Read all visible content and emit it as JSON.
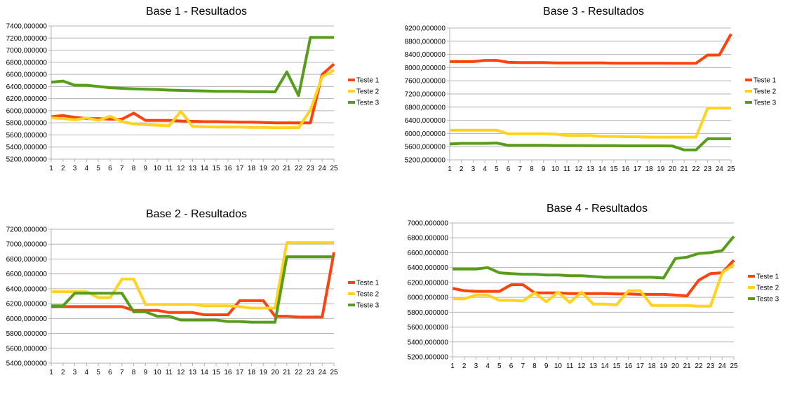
{
  "colors": {
    "Teste 1": "#ff420e",
    "Teste 2": "#ffd320",
    "Teste 3": "#579d1c"
  },
  "chart_data": [
    {
      "type": "line",
      "title": "Base 1 - Resultados",
      "categories": [
        "1",
        "2",
        "3",
        "4",
        "5",
        "6",
        "7",
        "8",
        "9",
        "10",
        "11",
        "12",
        "13",
        "14",
        "15",
        "16",
        "17",
        "18",
        "19",
        "20",
        "21",
        "22",
        "23",
        "24",
        "25"
      ],
      "ylim": [
        5200,
        7400
      ],
      "yticks": [
        5200,
        5400,
        5600,
        5800,
        6000,
        6200,
        6400,
        6600,
        6800,
        7000,
        7200,
        7400
      ],
      "ytick_labels": [
        "5200,000000",
        "5400,000000",
        "5600,000000",
        "5800,000000",
        "6000,000000",
        "6200,000000",
        "6400,000000",
        "6600,000000",
        "6800,000000",
        "7000,000000",
        "7200,000000",
        "7400,000000"
      ],
      "grid": true,
      "legend": "right",
      "series": [
        {
          "name": "Teste 1",
          "values": [
            5900,
            5920,
            5890,
            5870,
            5870,
            5860,
            5860,
            5960,
            5840,
            5840,
            5840,
            5830,
            5825,
            5820,
            5820,
            5815,
            5810,
            5810,
            5805,
            5800,
            5800,
            5800,
            5800,
            6600,
            6770
          ]
        },
        {
          "name": "Teste 2",
          "values": [
            5880,
            5870,
            5850,
            5880,
            5840,
            5910,
            5820,
            5780,
            5770,
            5760,
            5750,
            5990,
            5740,
            5735,
            5730,
            5730,
            5730,
            5725,
            5725,
            5720,
            5720,
            5720,
            6010,
            6560,
            6670
          ]
        },
        {
          "name": "Teste 3",
          "values": [
            6470,
            6490,
            6420,
            6420,
            6400,
            6380,
            6370,
            6360,
            6355,
            6350,
            6340,
            6335,
            6330,
            6325,
            6320,
            6320,
            6318,
            6315,
            6315,
            6310,
            6640,
            6250,
            7210,
            7210,
            7210
          ]
        }
      ]
    },
    {
      "type": "line",
      "title": "Base 3 - Resultados",
      "categories": [
        "1",
        "2",
        "3",
        "4",
        "5",
        "6",
        "7",
        "8",
        "9",
        "10",
        "11",
        "12",
        "13",
        "14",
        "15",
        "16",
        "17",
        "18",
        "19",
        "20",
        "21",
        "22",
        "23",
        "24",
        "25"
      ],
      "ylim": [
        5200,
        9200
      ],
      "yticks": [
        5200,
        5600,
        6000,
        6400,
        6800,
        7200,
        7600,
        8000,
        8400,
        8800,
        9200
      ],
      "ytick_labels": [
        "5200,000000",
        "5600,000000",
        "6000,000000",
        "6400,000000",
        "6800,000000",
        "7200,000000",
        "7600,000000",
        "8000,000000",
        "8400,000000",
        "8800,000000",
        "9200,000000"
      ],
      "grid": true,
      "legend": "right",
      "series": [
        {
          "name": "Teste 1",
          "values": [
            8180,
            8180,
            8180,
            8220,
            8220,
            8160,
            8150,
            8150,
            8150,
            8140,
            8140,
            8140,
            8140,
            8140,
            8135,
            8135,
            8135,
            8135,
            8135,
            8130,
            8130,
            8130,
            8380,
            8380,
            9020
          ]
        },
        {
          "name": "Teste 2",
          "values": [
            6100,
            6100,
            6100,
            6100,
            6100,
            5990,
            5990,
            5990,
            5990,
            5980,
            5940,
            5940,
            5940,
            5910,
            5910,
            5900,
            5900,
            5890,
            5890,
            5890,
            5890,
            5890,
            6770,
            6770,
            6770
          ]
        },
        {
          "name": "Teste 3",
          "values": [
            5680,
            5700,
            5700,
            5700,
            5710,
            5640,
            5640,
            5640,
            5640,
            5635,
            5635,
            5635,
            5630,
            5630,
            5630,
            5625,
            5625,
            5625,
            5625,
            5620,
            5500,
            5500,
            5840,
            5840,
            5840
          ]
        }
      ]
    },
    {
      "type": "line",
      "title": "Base 2 - Resultados",
      "categories": [
        "1",
        "2",
        "3",
        "4",
        "5",
        "6",
        "7",
        "8",
        "9",
        "10",
        "11",
        "12",
        "13",
        "14",
        "15",
        "16",
        "17",
        "18",
        "19",
        "20",
        "21",
        "22",
        "23",
        "24",
        "25"
      ],
      "ylim": [
        5400,
        7200
      ],
      "yticks": [
        5400,
        5600,
        5800,
        6000,
        6200,
        6400,
        6600,
        6800,
        7000,
        7200
      ],
      "ytick_labels": [
        "5400,000000",
        "5600,000000",
        "5800,000000",
        "6000,000000",
        "6200,000000",
        "6400,000000",
        "6600,000000",
        "6800,000000",
        "7000,000000",
        "7200,000000"
      ],
      "grid": true,
      "legend": "right",
      "series": [
        {
          "name": "Teste 1",
          "values": [
            6160,
            6160,
            6160,
            6160,
            6160,
            6160,
            6160,
            6110,
            6110,
            6110,
            6080,
            6080,
            6080,
            6050,
            6050,
            6050,
            6240,
            6240,
            6240,
            6030,
            6030,
            6020,
            6020,
            6020,
            6890
          ]
        },
        {
          "name": "Teste 2",
          "values": [
            6360,
            6360,
            6360,
            6360,
            6280,
            6280,
            6530,
            6530,
            6190,
            6190,
            6190,
            6190,
            6190,
            6170,
            6170,
            6170,
            6160,
            6140,
            6140,
            6140,
            7020,
            7020,
            7020,
            7020,
            7020
          ]
        },
        {
          "name": "Teste 3",
          "values": [
            6170,
            6170,
            6340,
            6340,
            6340,
            6340,
            6340,
            6090,
            6090,
            6030,
            6030,
            5980,
            5980,
            5980,
            5980,
            5960,
            5960,
            5950,
            5950,
            5950,
            6830,
            6830,
            6830,
            6830,
            6830
          ]
        }
      ]
    },
    {
      "type": "line",
      "title": "Base 4 - Resultados",
      "categories": [
        "1",
        "2",
        "3",
        "4",
        "5",
        "6",
        "7",
        "8",
        "9",
        "10",
        "11",
        "12",
        "13",
        "14",
        "15",
        "16",
        "17",
        "18",
        "19",
        "20",
        "21",
        "22",
        "23",
        "24",
        "25"
      ],
      "ylim": [
        5200,
        7000
      ],
      "yticks": [
        5200,
        5400,
        5600,
        5800,
        6000,
        6200,
        6400,
        6600,
        6800,
        7000
      ],
      "ytick_labels": [
        "5200,000000",
        "5400,000000",
        "5600,000000",
        "5800,000000",
        "6000,000000",
        "6200,000000",
        "6400,000000",
        "6600,000000",
        "6800,000000",
        "7000,000000"
      ],
      "grid": true,
      "legend": "right",
      "series": [
        {
          "name": "Teste 1",
          "values": [
            6120,
            6090,
            6080,
            6080,
            6080,
            6170,
            6170,
            6060,
            6060,
            6060,
            6050,
            6050,
            6050,
            6050,
            6045,
            6045,
            6040,
            6040,
            6040,
            6030,
            6020,
            6230,
            6320,
            6330,
            6500
          ]
        },
        {
          "name": "Teste 2",
          "values": [
            5980,
            5980,
            6030,
            6030,
            5960,
            5960,
            5950,
            6060,
            5940,
            6070,
            5930,
            6070,
            5910,
            5910,
            5900,
            6090,
            6090,
            5890,
            5890,
            5890,
            5890,
            5880,
            5880,
            6330,
            6440
          ]
        },
        {
          "name": "Teste 3",
          "values": [
            6380,
            6380,
            6380,
            6400,
            6330,
            6320,
            6310,
            6310,
            6300,
            6300,
            6290,
            6290,
            6280,
            6270,
            6270,
            6270,
            6270,
            6270,
            6260,
            6520,
            6540,
            6590,
            6600,
            6630,
            6820
          ]
        }
      ]
    }
  ]
}
